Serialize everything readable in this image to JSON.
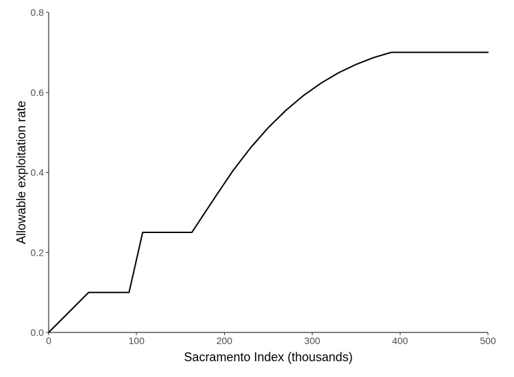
{
  "chart_data": {
    "type": "line",
    "title": "",
    "xlabel": "Sacramento Index (thousands)",
    "ylabel": "Allowable exploitation rate",
    "xlim": [
      0,
      500
    ],
    "ylim": [
      0,
      0.8
    ],
    "x_ticks": [
      0,
      100,
      200,
      300,
      400,
      500
    ],
    "x_tick_labels": [
      "0",
      "100",
      "200",
      "300",
      "400",
      "500"
    ],
    "y_ticks": [
      0.0,
      0.2,
      0.4,
      0.6,
      0.8
    ],
    "y_tick_labels": [
      "0.0",
      "0.2",
      "0.4",
      "0.6",
      "0.8"
    ],
    "grid": false,
    "legend": "none",
    "series": [
      {
        "color": "#000000",
        "x": [
          0,
          45.5,
          91.5,
          107,
          163,
          175,
          190,
          210,
          230,
          250,
          270,
          290,
          310,
          330,
          350,
          370,
          390,
          406,
          500
        ],
        "y": [
          0.0,
          0.1,
          0.1,
          0.25,
          0.25,
          0.29,
          0.34,
          0.405,
          0.462,
          0.512,
          0.555,
          0.592,
          0.623,
          0.649,
          0.67,
          0.687,
          0.7,
          0.7,
          0.7
        ]
      }
    ]
  }
}
